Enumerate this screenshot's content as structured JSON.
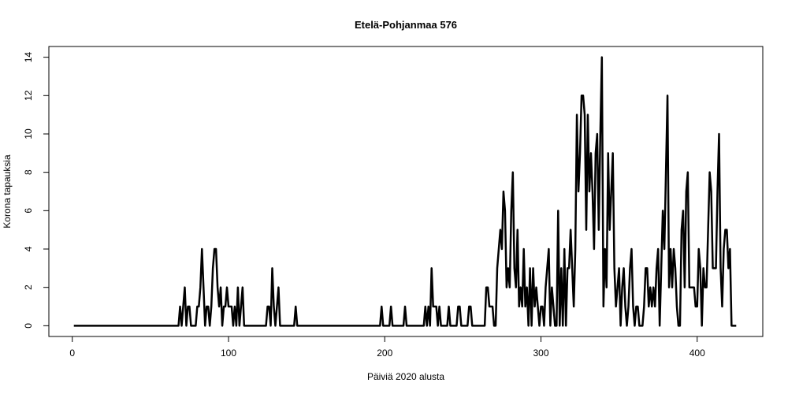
{
  "chart_data": {
    "type": "line",
    "title": "Etelä-Pohjanmaa 576",
    "x_label": "Päiviä 2020 alusta",
    "y_label": "Korona tapauksia",
    "color": "#000000",
    "xlim": [
      -15,
      442
    ],
    "ylim": [
      -0.56,
      14.56
    ],
    "xticks": [
      0,
      100,
      200,
      300,
      400
    ],
    "yticks": [
      0,
      2,
      4,
      6,
      8,
      10,
      12,
      14
    ],
    "x": [
      1,
      2,
      3,
      4,
      5,
      6,
      7,
      8,
      9,
      10,
      11,
      12,
      13,
      14,
      15,
      16,
      17,
      18,
      19,
      20,
      21,
      22,
      23,
      24,
      25,
      26,
      27,
      28,
      29,
      30,
      31,
      32,
      33,
      34,
      35,
      36,
      37,
      38,
      39,
      40,
      41,
      42,
      43,
      44,
      45,
      46,
      47,
      48,
      49,
      50,
      51,
      52,
      53,
      54,
      55,
      56,
      57,
      58,
      59,
      60,
      61,
      62,
      63,
      64,
      65,
      66,
      67,
      68,
      69,
      70,
      71,
      72,
      73,
      74,
      75,
      76,
      77,
      78,
      79,
      80,
      81,
      82,
      83,
      84,
      85,
      86,
      87,
      88,
      89,
      90,
      91,
      92,
      93,
      94,
      95,
      96,
      97,
      98,
      99,
      100,
      101,
      102,
      103,
      104,
      105,
      106,
      107,
      108,
      109,
      110,
      111,
      112,
      113,
      114,
      115,
      116,
      117,
      118,
      119,
      120,
      121,
      122,
      123,
      124,
      125,
      126,
      127,
      128,
      129,
      130,
      131,
      132,
      133,
      134,
      135,
      136,
      137,
      138,
      139,
      140,
      141,
      142,
      143,
      144,
      145,
      146,
      147,
      148,
      149,
      150,
      151,
      152,
      153,
      154,
      155,
      156,
      157,
      158,
      159,
      160,
      161,
      162,
      163,
      164,
      165,
      166,
      167,
      168,
      169,
      170,
      171,
      172,
      173,
      174,
      175,
      176,
      177,
      178,
      179,
      180,
      181,
      182,
      183,
      184,
      185,
      186,
      187,
      188,
      189,
      190,
      191,
      192,
      193,
      194,
      195,
      196,
      197,
      198,
      199,
      200,
      201,
      202,
      203,
      204,
      205,
      206,
      207,
      208,
      209,
      210,
      211,
      212,
      213,
      214,
      215,
      216,
      217,
      218,
      219,
      220,
      221,
      222,
      223,
      224,
      225,
      226,
      227,
      228,
      229,
      230,
      231,
      232,
      233,
      234,
      235,
      236,
      237,
      238,
      239,
      240,
      241,
      242,
      243,
      244,
      245,
      246,
      247,
      248,
      249,
      250,
      251,
      252,
      253,
      254,
      255,
      256,
      257,
      258,
      259,
      260,
      261,
      262,
      263,
      264,
      265,
      266,
      267,
      268,
      269,
      270,
      271,
      272,
      273,
      274,
      275,
      276,
      277,
      278,
      279,
      280,
      281,
      282,
      283,
      284,
      285,
      286,
      287,
      288,
      289,
      290,
      291,
      292,
      293,
      294,
      295,
      296,
      297,
      298,
      299,
      300,
      301,
      302,
      303,
      304,
      305,
      306,
      307,
      308,
      309,
      310,
      311,
      312,
      313,
      314,
      315,
      316,
      317,
      318,
      319,
      320,
      321,
      322,
      323,
      324,
      325,
      326,
      327,
      328,
      329,
      330,
      331,
      332,
      333,
      334,
      335,
      336,
      337,
      338,
      339,
      340,
      341,
      342,
      343,
      344,
      345,
      346,
      347,
      348,
      349,
      350,
      351,
      352,
      353,
      354,
      355,
      356,
      357,
      358,
      359,
      360,
      361,
      362,
      363,
      364,
      365,
      366,
      367,
      368,
      369,
      370,
      371,
      372,
      373,
      374,
      375,
      376,
      377,
      378,
      379,
      380,
      381,
      382,
      383,
      384,
      385,
      386,
      387,
      388,
      389,
      390,
      391,
      392,
      393,
      394,
      395,
      396,
      397,
      398,
      399,
      400,
      401,
      402,
      403,
      404,
      405,
      406,
      407,
      408,
      409,
      410,
      411,
      412,
      413,
      414,
      415,
      416,
      417,
      418,
      419,
      420,
      421,
      422,
      423,
      424,
      425
    ],
    "values": [
      0,
      0,
      0,
      0,
      0,
      0,
      0,
      0,
      0,
      0,
      0,
      0,
      0,
      0,
      0,
      0,
      0,
      0,
      0,
      0,
      0,
      0,
      0,
      0,
      0,
      0,
      0,
      0,
      0,
      0,
      0,
      0,
      0,
      0,
      0,
      0,
      0,
      0,
      0,
      0,
      0,
      0,
      0,
      0,
      0,
      0,
      0,
      0,
      0,
      0,
      0,
      0,
      0,
      0,
      0,
      0,
      0,
      0,
      0,
      0,
      0,
      0,
      0,
      0,
      0,
      0,
      0,
      0,
      1,
      0,
      1,
      2,
      0,
      1,
      1,
      0,
      0,
      0,
      0,
      1,
      1,
      2,
      4,
      2,
      0,
      1,
      1,
      0,
      1,
      3,
      4,
      4,
      2,
      1,
      2,
      0,
      1,
      1,
      2,
      1,
      1,
      1,
      0,
      1,
      0,
      2,
      0,
      1,
      2,
      0,
      0,
      0,
      0,
      0,
      0,
      0,
      0,
      0,
      0,
      0,
      0,
      0,
      0,
      0,
      1,
      1,
      0,
      3,
      1,
      0,
      1,
      2,
      0,
      0,
      0,
      0,
      0,
      0,
      0,
      0,
      0,
      0,
      1,
      0,
      0,
      0,
      0,
      0,
      0,
      0,
      0,
      0,
      0,
      0,
      0,
      0,
      0,
      0,
      0,
      0,
      0,
      0,
      0,
      0,
      0,
      0,
      0,
      0,
      0,
      0,
      0,
      0,
      0,
      0,
      0,
      0,
      0,
      0,
      0,
      0,
      0,
      0,
      0,
      0,
      0,
      0,
      0,
      0,
      0,
      0,
      0,
      0,
      0,
      0,
      0,
      0,
      0,
      1,
      0,
      0,
      0,
      0,
      0,
      1,
      0,
      0,
      0,
      0,
      0,
      0,
      0,
      0,
      1,
      0,
      0,
      0,
      0,
      0,
      0,
      0,
      0,
      0,
      0,
      0,
      0,
      1,
      0,
      1,
      0,
      3,
      1,
      1,
      1,
      0,
      1,
      0,
      0,
      0,
      0,
      0,
      1,
      0,
      0,
      0,
      0,
      0,
      1,
      1,
      0,
      0,
      0,
      0,
      0,
      1,
      1,
      0,
      0,
      0,
      0,
      0,
      0,
      0,
      0,
      0,
      2,
      2,
      1,
      1,
      1,
      0,
      0,
      3,
      4,
      5,
      4,
      7,
      6,
      2,
      3,
      2,
      6,
      8,
      3,
      2,
      5,
      1,
      2,
      1,
      4,
      1,
      2,
      0,
      3,
      0,
      3,
      1,
      2,
      1,
      0,
      1,
      1,
      0,
      2,
      3,
      4,
      0,
      2,
      1,
      0,
      0,
      6,
      0,
      3,
      0,
      4,
      0,
      3,
      3,
      5,
      3,
      1,
      4,
      11,
      7,
      9,
      12,
      12,
      11,
      5,
      11,
      7,
      9,
      7,
      4,
      9,
      10,
      5,
      10,
      14,
      1,
      4,
      2,
      9,
      5,
      7,
      9,
      3,
      1,
      2,
      3,
      0,
      2,
      3,
      1,
      0,
      1,
      3,
      4,
      1,
      0,
      1,
      1,
      0,
      0,
      0,
      1,
      3,
      3,
      1,
      2,
      1,
      2,
      1,
      3,
      4,
      0,
      3,
      6,
      4,
      8,
      12,
      2,
      4,
      2,
      4,
      3,
      1,
      0,
      0,
      5,
      6,
      2,
      7,
      8,
      2,
      2,
      2,
      2,
      1,
      1,
      4,
      3,
      0,
      3,
      2,
      2,
      5,
      8,
      7,
      3,
      3,
      3,
      7,
      10,
      3,
      1,
      4,
      5,
      5,
      3,
      4,
      0,
      0,
      0,
      0
    ]
  }
}
